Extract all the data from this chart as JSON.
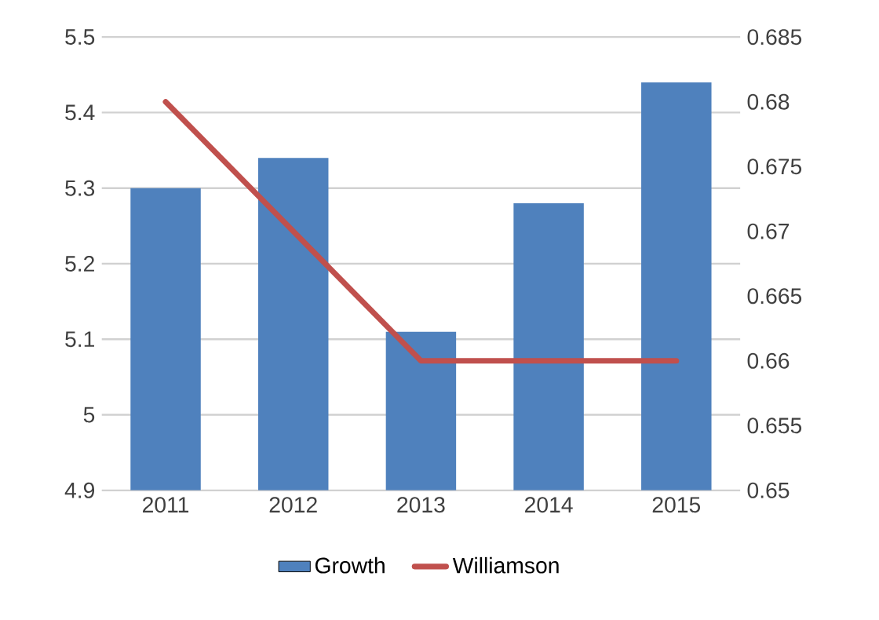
{
  "chart_data": {
    "type": "bar",
    "categories": [
      "2011",
      "2012",
      "2013",
      "2014",
      "2015"
    ],
    "series": [
      {
        "name": "Growth",
        "color": "#4f81bd",
        "values": [
          5.3,
          5.34,
          5.11,
          5.28,
          5.44
        ]
      },
      {
        "name": "Williamson",
        "type": "line",
        "axis": "y2",
        "color": "#c0504d",
        "values": [
          0.68,
          0.67,
          0.66,
          0.66,
          0.66
        ]
      }
    ],
    "ylim": [
      4.9,
      5.5
    ],
    "yticks": [
      4.9,
      5,
      5.1,
      5.2,
      5.3,
      5.4,
      5.5
    ],
    "y2lim": [
      0.65,
      0.685
    ],
    "y2ticks": [
      0.65,
      0.655,
      0.66,
      0.665,
      0.67,
      0.675,
      0.68,
      0.685
    ],
    "grid": "y",
    "legend": "bottom",
    "marker": "none",
    "line_style": "solid"
  }
}
